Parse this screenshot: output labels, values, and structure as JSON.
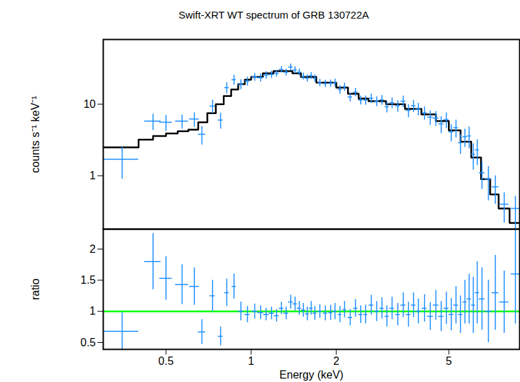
{
  "chart_data": [
    {
      "type": "scatter",
      "title": "Swift-XRT WT spectrum of GRB 130722A",
      "y_label": "counts s⁻¹ keV⁻¹",
      "log": true,
      "tick_labels": "y",
      "xlim": [
        0.3,
        8.9
      ],
      "xticks": [
        0.5,
        1,
        2,
        5
      ],
      "ylim": [
        0.18,
        80
      ],
      "yticks": [
        1,
        10
      ],
      "color": "#1e8fff",
      "x": [
        0.35,
        0.45,
        0.5,
        0.57,
        0.63,
        0.67,
        0.73,
        0.78,
        0.82,
        0.87,
        0.92,
        0.97,
        1.03,
        1.08,
        1.13,
        1.18,
        1.23,
        1.28,
        1.33,
        1.38,
        1.43,
        1.48,
        1.53,
        1.58,
        1.63,
        1.68,
        1.75,
        1.83,
        1.91,
        1.98,
        2.06,
        2.14,
        2.24,
        2.34,
        2.44,
        2.54,
        2.66,
        2.78,
        2.9,
        3.02,
        3.15,
        3.3,
        3.45,
        3.6,
        3.75,
        3.9,
        4.1,
        4.3,
        4.5,
        4.7,
        4.9,
        5.1,
        5.3,
        5.5,
        5.7,
        5.9,
        6.1,
        6.3,
        6.55,
        6.9,
        7.3,
        7.85,
        8.6
      ],
      "x_err": [
        0.05,
        0.03,
        0.025,
        0.03,
        0.025,
        0.02,
        0.015,
        0.015,
        0.015,
        0.015,
        0.02,
        0.02,
        0.025,
        0.025,
        0.025,
        0.025,
        0.025,
        0.025,
        0.025,
        0.025,
        0.025,
        0.025,
        0.025,
        0.025,
        0.025,
        0.025,
        0.03,
        0.03,
        0.03,
        0.03,
        0.03,
        0.03,
        0.04,
        0.04,
        0.04,
        0.04,
        0.05,
        0.05,
        0.05,
        0.05,
        0.06,
        0.06,
        0.07,
        0.07,
        0.07,
        0.08,
        0.08,
        0.1,
        0.1,
        0.1,
        0.1,
        0.1,
        0.1,
        0.1,
        0.1,
        0.1,
        0.1,
        0.1,
        0.15,
        0.2,
        0.2,
        0.3,
        0.3
      ],
      "values": [
        1.7,
        5.8,
        5.6,
        5.8,
        6.2,
        3.8,
        9.4,
        6,
        17,
        22,
        19,
        21,
        24,
        23.5,
        25.5,
        26,
        27,
        30.5,
        28,
        33,
        30,
        28,
        24.5,
        23,
        25,
        23,
        20,
        19.4,
        19.6,
        20,
        16,
        17.5,
        12.6,
        14.7,
        11.4,
        11.4,
        12.1,
        11,
        11.5,
        9.2,
        10.5,
        9.5,
        11,
        8.2,
        9.5,
        8.6,
        7.6,
        6.6,
        6.4,
        5.3,
        6.1,
        4.1,
        4.7,
        2.9,
        3.5,
        3.6,
        2.0,
        2.3,
        1.1,
        0.9,
        0.7,
        0.4,
        0.35
      ],
      "y_err": [
        0.8,
        1.5,
        1.4,
        1.3,
        1.4,
        1.1,
        2,
        1.5,
        3,
        3.5,
        3,
        3,
        3,
        3,
        3,
        3,
        3,
        3,
        3,
        3.5,
        3.3,
        3,
        2.7,
        2.6,
        2.8,
        2.6,
        2.3,
        2.3,
        2.3,
        2.5,
        2.2,
        2.3,
        1.8,
        2,
        1.6,
        1.7,
        1.8,
        1.7,
        1.8,
        1.6,
        1.8,
        1.7,
        2,
        1.7,
        1.8,
        1.7,
        1.6,
        1.5,
        1.5,
        1.4,
        1.5,
        1.1,
        1.3,
        0.9,
        1.0,
        1.2,
        0.8,
        0.9,
        0.45,
        0.45,
        0.3,
        0.18,
        0.17
      ],
      "model": {
        "type": "step",
        "color": "#000000",
        "edges": [
          0.3,
          0.4,
          0.45,
          0.5,
          0.55,
          0.6,
          0.65,
          0.7,
          0.75,
          0.8,
          0.85,
          0.9,
          0.95,
          1.0,
          1.1,
          1.2,
          1.3,
          1.4,
          1.5,
          1.7,
          2.0,
          2.2,
          2.4,
          2.6,
          3.0,
          3.5,
          4.0,
          4.5,
          5.0,
          5.5,
          6.0,
          6.5,
          7.0,
          7.5,
          8.2,
          8.9
        ],
        "values": [
          2.5,
          3.2,
          3.6,
          3.9,
          4.2,
          4.4,
          5.6,
          7.5,
          10,
          13,
          16,
          19,
          22,
          24,
          27,
          29,
          29,
          27,
          24,
          20,
          17,
          14,
          12,
          11,
          10,
          8.6,
          7.2,
          5.8,
          4.3,
          3.0,
          1.8,
          0.9,
          0.55,
          0.35,
          0.22
        ]
      }
    },
    {
      "type": "scatter",
      "x_label": "Energy (keV)",
      "y_label": "ratio",
      "log": "x",
      "xlim": [
        0.3,
        8.9
      ],
      "xticks": [
        0.5,
        1,
        2,
        5
      ],
      "ylim": [
        0.39,
        2.32
      ],
      "yticks": [
        0.5,
        1,
        1.5,
        2
      ],
      "color": "#1e8fff",
      "x": [
        0.35,
        0.45,
        0.5,
        0.57,
        0.63,
        0.67,
        0.73,
        0.78,
        0.82,
        0.87,
        0.92,
        0.97,
        1.03,
        1.08,
        1.13,
        1.18,
        1.23,
        1.28,
        1.33,
        1.38,
        1.43,
        1.48,
        1.53,
        1.58,
        1.63,
        1.68,
        1.75,
        1.83,
        1.91,
        1.98,
        2.06,
        2.14,
        2.24,
        2.34,
        2.44,
        2.54,
        2.66,
        2.78,
        2.9,
        3.02,
        3.15,
        3.3,
        3.45,
        3.6,
        3.75,
        3.9,
        4.1,
        4.3,
        4.5,
        4.7,
        4.9,
        5.1,
        5.3,
        5.5,
        5.7,
        5.9,
        6.1,
        6.3,
        6.55,
        6.9,
        7.3,
        7.85,
        8.6
      ],
      "x_err": [
        0.05,
        0.03,
        0.025,
        0.03,
        0.025,
        0.02,
        0.015,
        0.015,
        0.015,
        0.015,
        0.02,
        0.02,
        0.025,
        0.025,
        0.025,
        0.025,
        0.025,
        0.025,
        0.025,
        0.025,
        0.025,
        0.025,
        0.025,
        0.025,
        0.025,
        0.025,
        0.03,
        0.03,
        0.03,
        0.03,
        0.03,
        0.03,
        0.04,
        0.04,
        0.04,
        0.04,
        0.05,
        0.05,
        0.05,
        0.05,
        0.06,
        0.06,
        0.07,
        0.07,
        0.07,
        0.08,
        0.08,
        0.1,
        0.1,
        0.1,
        0.1,
        0.1,
        0.1,
        0.1,
        0.1,
        0.1,
        0.1,
        0.1,
        0.15,
        0.2,
        0.2,
        0.3,
        0.3
      ],
      "values": [
        0.68,
        1.8,
        1.53,
        1.43,
        1.4,
        0.67,
        1.25,
        0.6,
        1.3,
        1.4,
        1.0,
        0.95,
        1.0,
        0.98,
        0.95,
        0.97,
        0.93,
        1.05,
        0.97,
        1.15,
        1.12,
        1.05,
        1.02,
        0.96,
        1.05,
        0.97,
        1.0,
        0.97,
        0.98,
        1.0,
        0.95,
        1.03,
        0.9,
        1.05,
        0.95,
        0.95,
        1.1,
        1.0,
        1.05,
        0.92,
        1.05,
        0.95,
        1.1,
        0.95,
        1.1,
        1.0,
        1.05,
        0.92,
        1.1,
        0.92,
        1.05,
        0.95,
        1.1,
        0.95,
        1.15,
        1.2,
        1.1,
        1.3,
        1.2,
        1.0,
        1.3,
        1.15,
        1.6
      ],
      "y_err": [
        0.3,
        0.45,
        0.35,
        0.32,
        0.3,
        0.2,
        0.25,
        0.15,
        0.22,
        0.2,
        0.15,
        0.13,
        0.12,
        0.11,
        0.1,
        0.1,
        0.1,
        0.1,
        0.1,
        0.11,
        0.11,
        0.11,
        0.11,
        0.11,
        0.11,
        0.11,
        0.11,
        0.12,
        0.12,
        0.13,
        0.13,
        0.13,
        0.13,
        0.14,
        0.14,
        0.15,
        0.16,
        0.16,
        0.17,
        0.17,
        0.18,
        0.18,
        0.2,
        0.2,
        0.2,
        0.2,
        0.22,
        0.22,
        0.24,
        0.24,
        0.26,
        0.26,
        0.3,
        0.3,
        0.35,
        0.4,
        0.45,
        0.5,
        0.5,
        0.5,
        0.6,
        0.5,
        0.8
      ],
      "reference_line": {
        "value": 1,
        "color": "#00ff00"
      }
    }
  ]
}
